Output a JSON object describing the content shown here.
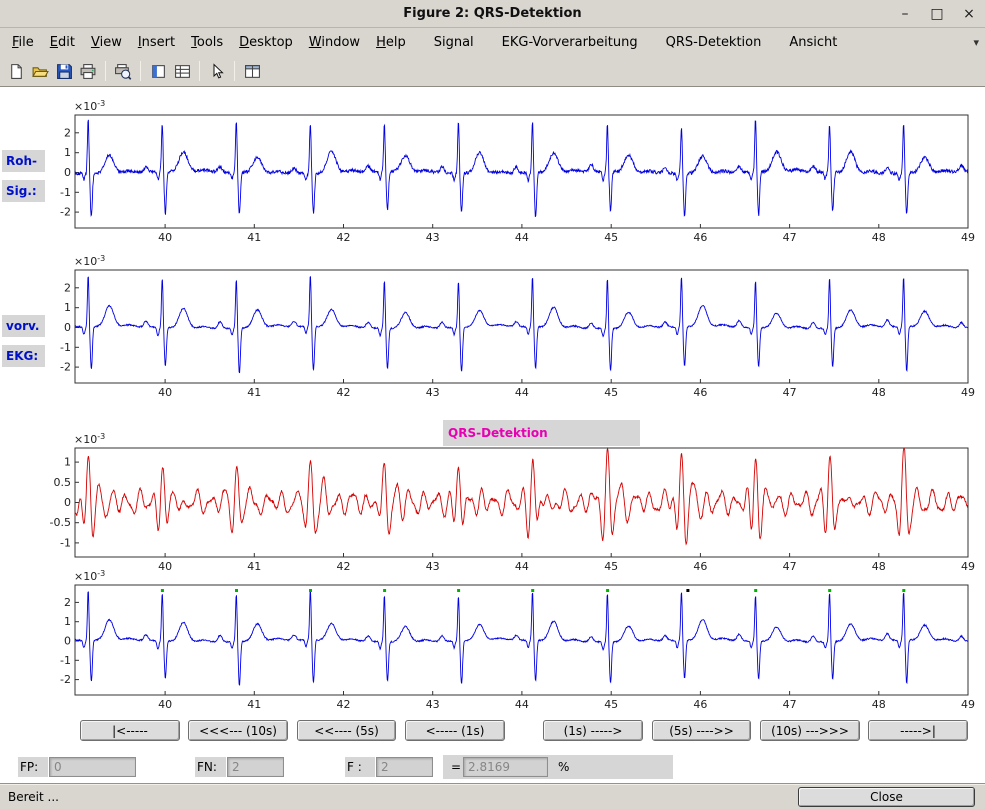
{
  "window": {
    "title": "Figure 2: QRS-Detektion",
    "controls": [
      {
        "name": "minimize",
        "glyph": "–"
      },
      {
        "name": "maximize",
        "glyph": "□"
      },
      {
        "name": "close",
        "glyph": "×"
      }
    ]
  },
  "menu": {
    "items": [
      {
        "label": "File",
        "underline": true
      },
      {
        "label": "Edit",
        "underline": true
      },
      {
        "label": "View",
        "underline": true
      },
      {
        "label": "Insert",
        "underline": true
      },
      {
        "label": "Tools",
        "underline": true
      },
      {
        "label": "Desktop",
        "underline": true
      },
      {
        "label": "Window",
        "underline": true
      },
      {
        "label": "Help",
        "underline": true
      },
      {
        "label": "Signal",
        "underline": false,
        "gap_before": true
      },
      {
        "label": "EKG-Vorverarbeitung",
        "underline": false,
        "gap_before": true
      },
      {
        "label": "QRS-Detektion",
        "underline": false,
        "gap_before": true
      },
      {
        "label": "Ansicht",
        "underline": false,
        "gap_before": true
      }
    ],
    "overflow_glyph": "▾"
  },
  "toolbar": {
    "items": [
      {
        "type": "icon",
        "name": "new-document"
      },
      {
        "type": "icon",
        "name": "open-folder"
      },
      {
        "type": "icon",
        "name": "save"
      },
      {
        "type": "icon",
        "name": "print"
      },
      {
        "type": "sep"
      },
      {
        "type": "icon",
        "name": "print-preview"
      },
      {
        "type": "sep"
      },
      {
        "type": "icon",
        "name": "colorbar"
      },
      {
        "type": "icon",
        "name": "legend"
      },
      {
        "type": "sep"
      },
      {
        "type": "icon",
        "name": "edit-plot"
      },
      {
        "type": "sep"
      },
      {
        "type": "icon",
        "name": "property-table"
      }
    ]
  },
  "panel_labels": {
    "raw_line1": "Roh-",
    "raw_line2": "Sig.:",
    "pre_line1": "vorv.",
    "pre_line2": "EKG:",
    "qrs_title": "QRS-Detektion"
  },
  "plots": {
    "xlim": [
      38.99,
      49.0
    ],
    "xticks": [
      40,
      41,
      42,
      43,
      44,
      45,
      46,
      47,
      48,
      49
    ],
    "exponent_label": "×10",
    "exponent_power": "-3",
    "beat_times": [
      39.14,
      39.97,
      40.8,
      41.63,
      42.46,
      43.29,
      44.12,
      44.96,
      45.79,
      46.62,
      47.45,
      48.28,
      49.11
    ],
    "panels": [
      {
        "id": "raw",
        "kind": "ecg",
        "color": "#0000e0",
        "yticks": [
          2,
          1,
          0,
          -1,
          -2
        ],
        "ylim": [
          -2.8,
          2.9
        ]
      },
      {
        "id": "pre",
        "kind": "ecg",
        "color": "#0000e0",
        "yticks": [
          2,
          1,
          0,
          -1,
          -2
        ],
        "ylim": [
          -2.8,
          2.9
        ]
      },
      {
        "id": "filt",
        "kind": "filtered",
        "color": "#d40000",
        "yticks": [
          1,
          0.5,
          0,
          -0.5,
          -1
        ],
        "ylim": [
          -1.35,
          1.35
        ]
      },
      {
        "id": "det",
        "kind": "ecg",
        "color": "#0000e0",
        "yticks": [
          2,
          1,
          0,
          -1,
          -2
        ],
        "ylim": [
          -2.8,
          2.9
        ],
        "markers": {
          "green": [
            39.97,
            40.8,
            41.63,
            42.46,
            43.29,
            44.12,
            44.96,
            46.62,
            47.45,
            48.28
          ],
          "green_color": "#00b400",
          "black": [
            45.86
          ],
          "black_color": "#000000"
        }
      }
    ]
  },
  "nav": {
    "buttons": [
      {
        "label": "|<-----"
      },
      {
        "label": "<<<--- (10s)"
      },
      {
        "label": "<<---- (5s)"
      },
      {
        "label": "<----- (1s)"
      },
      {
        "label": "(1s) ----->"
      },
      {
        "label": "(5s) ---->>"
      },
      {
        "label": "(10s) --->>>"
      },
      {
        "label": "----->|"
      }
    ]
  },
  "stats": {
    "fp_label": "FP:",
    "fp_value": "0",
    "fn_label": "FN:",
    "fn_value": "2",
    "f_label": "F :",
    "f_value": "2",
    "equals": "=",
    "result_value": "2.8169",
    "percent": "%"
  },
  "statusbar": {
    "text": "Bereit ...",
    "close_label": "Close"
  }
}
